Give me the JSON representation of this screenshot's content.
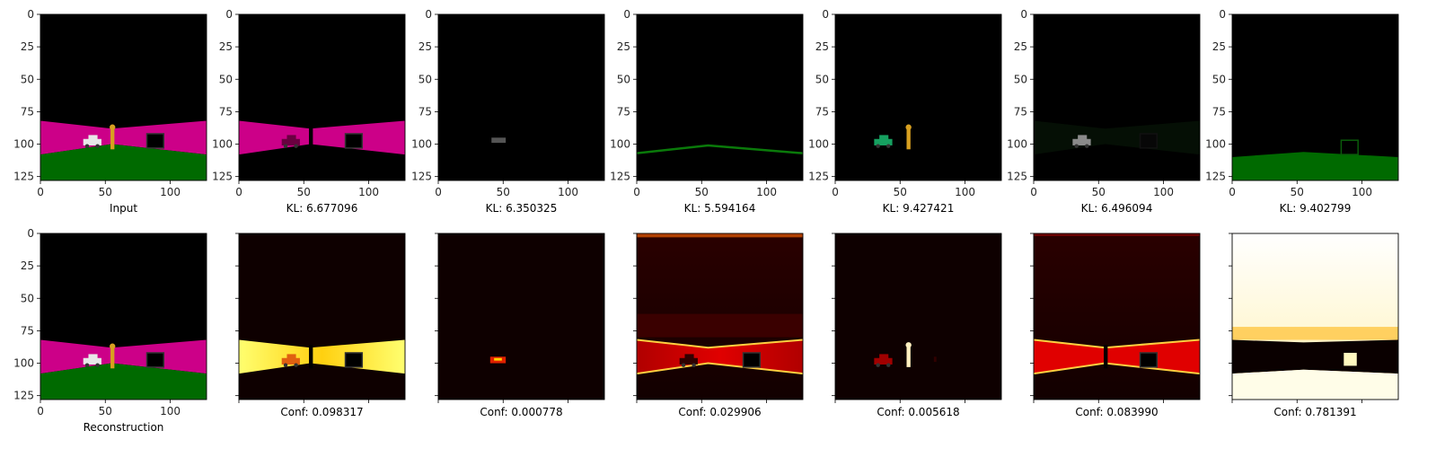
{
  "chart_data": {
    "type": "image-grid",
    "rows": 2,
    "cols": 7,
    "xlim": [
      0,
      128
    ],
    "ylim": [
      128,
      0
    ],
    "x_ticks": [
      0,
      50,
      100
    ],
    "y_ticks": [
      0,
      25,
      50,
      75,
      100,
      125
    ],
    "top_row": [
      {
        "caption": "Input",
        "kind": "scene"
      },
      {
        "caption": "KL: 6.677096",
        "kind": "mask-road"
      },
      {
        "caption": "KL: 6.350325",
        "kind": "mask-car"
      },
      {
        "caption": "KL: 5.594164",
        "kind": "mask-horizon"
      },
      {
        "caption": "KL: 9.427421",
        "kind": "mask-objects"
      },
      {
        "caption": "KL: 6.496094",
        "kind": "mask-faint"
      },
      {
        "caption": "KL: 9.402799",
        "kind": "mask-ground"
      }
    ],
    "bottom_row": [
      {
        "caption": "Reconstruction",
        "kind": "scene"
      },
      {
        "caption": "Conf: 0.098317",
        "kind": "heat-road"
      },
      {
        "caption": "Conf: 0.000778",
        "kind": "heat-car"
      },
      {
        "caption": "Conf: 0.029906",
        "kind": "heat-edges"
      },
      {
        "caption": "Conf: 0.005618",
        "kind": "heat-objects"
      },
      {
        "caption": "Conf: 0.083990",
        "kind": "heat-mid"
      },
      {
        "caption": "Conf: 0.781391",
        "kind": "heat-sky"
      }
    ],
    "colors": {
      "pink": "#cc0088",
      "green": "#006a00",
      "heat_low": "#0a0000",
      "heat_mid": "#cc0000",
      "heat_high": "#ffff60"
    }
  }
}
